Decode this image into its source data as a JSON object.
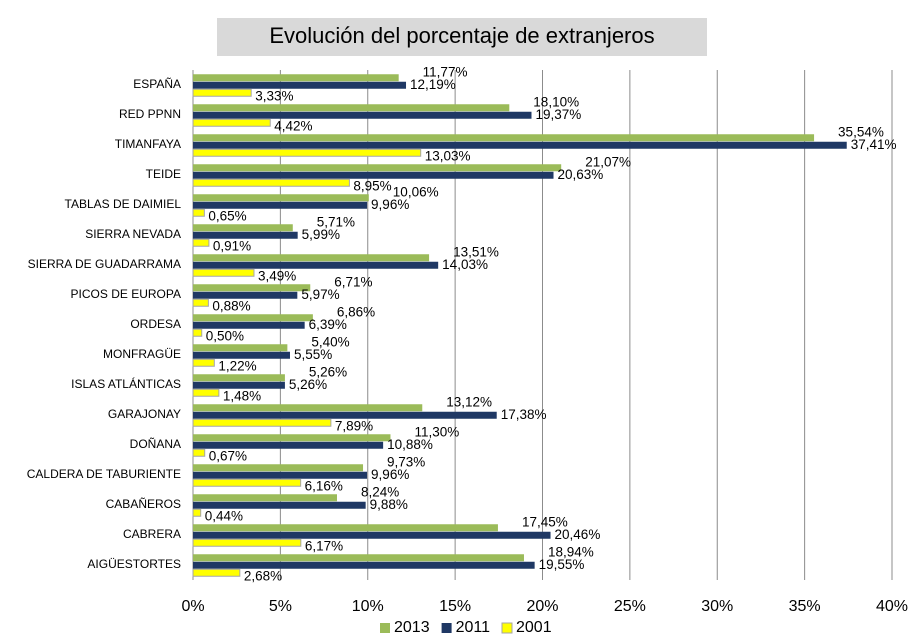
{
  "chart_data": {
    "type": "barh",
    "title": "Evolución del porcentaje de extranjeros",
    "categories": [
      "ESPAÑA",
      "RED PPNN",
      "TIMANFAYA",
      "TEIDE",
      "TABLAS DE DAIMIEL",
      "SIERRA NEVADA",
      "SIERRA DE GUADARRAMA",
      "PICOS DE EUROPA",
      "ORDESA",
      "MONFRAGÜE",
      "ISLAS ATLÁNTICAS",
      "GARAJONAY",
      "DOÑANA",
      "CALDERA DE TABURIENTE",
      "CABAÑEROS",
      "CABRERA",
      "AIGÜESTORTES"
    ],
    "series": [
      {
        "name": "2013",
        "color": "#9bbb59",
        "values": [
          11.77,
          18.1,
          35.54,
          21.07,
          10.06,
          5.71,
          13.51,
          6.71,
          6.86,
          5.4,
          5.26,
          13.12,
          11.3,
          9.73,
          8.24,
          17.45,
          18.94
        ],
        "value_labels": [
          "11,77%",
          "18,10%",
          "35,54%",
          "21,07%",
          "10,06%",
          "5,71%",
          "13,51%",
          "6,71%",
          "6,86%",
          "5,40%",
          "5,26%",
          "13,12%",
          "11,30%",
          "9,73%",
          "8,24%",
          "17,45%",
          "18,94%"
        ]
      },
      {
        "name": "2011",
        "color": "#1f3864",
        "values": [
          12.19,
          19.37,
          37.41,
          20.63,
          9.96,
          5.99,
          14.03,
          5.97,
          6.39,
          5.55,
          5.26,
          17.38,
          10.88,
          9.96,
          9.88,
          20.46,
          19.55
        ],
        "value_labels": [
          "12,19%",
          "19,37%",
          "37,41%",
          "20,63%",
          "9,96%",
          "5,99%",
          "14,03%",
          "5,97%",
          "6,39%",
          "5,55%",
          "5,26%",
          "17,38%",
          "10,88%",
          "9,96%",
          "9,88%",
          "20,46%",
          "19,55%"
        ]
      },
      {
        "name": "2001",
        "color": "#ffff00",
        "values": [
          3.33,
          4.42,
          13.03,
          8.95,
          0.65,
          0.91,
          3.49,
          0.88,
          0.5,
          1.22,
          1.48,
          7.89,
          0.67,
          6.16,
          0.44,
          6.17,
          2.68
        ],
        "value_labels": [
          "3,33%",
          "4,42%",
          "13,03%",
          "8,95%",
          "0,65%",
          "0,91%",
          "3,49%",
          "0,88%",
          "0,50%",
          "1,22%",
          "1,48%",
          "7,89%",
          "0,67%",
          "6,16%",
          "0,44%",
          "6,17%",
          "2,68%"
        ]
      }
    ],
    "xlim": [
      0,
      40
    ],
    "xticks": [
      {
        "value": 0,
        "label": "0%"
      },
      {
        "value": 5,
        "label": "5%"
      },
      {
        "value": 10,
        "label": "10%"
      },
      {
        "value": 15,
        "label": "15%"
      },
      {
        "value": 20,
        "label": "20%"
      },
      {
        "value": 25,
        "label": "25%"
      },
      {
        "value": 30,
        "label": "30%"
      },
      {
        "value": 35,
        "label": "35%"
      },
      {
        "value": 40,
        "label": "40%"
      }
    ],
    "grid": true,
    "legend": "bottom"
  }
}
